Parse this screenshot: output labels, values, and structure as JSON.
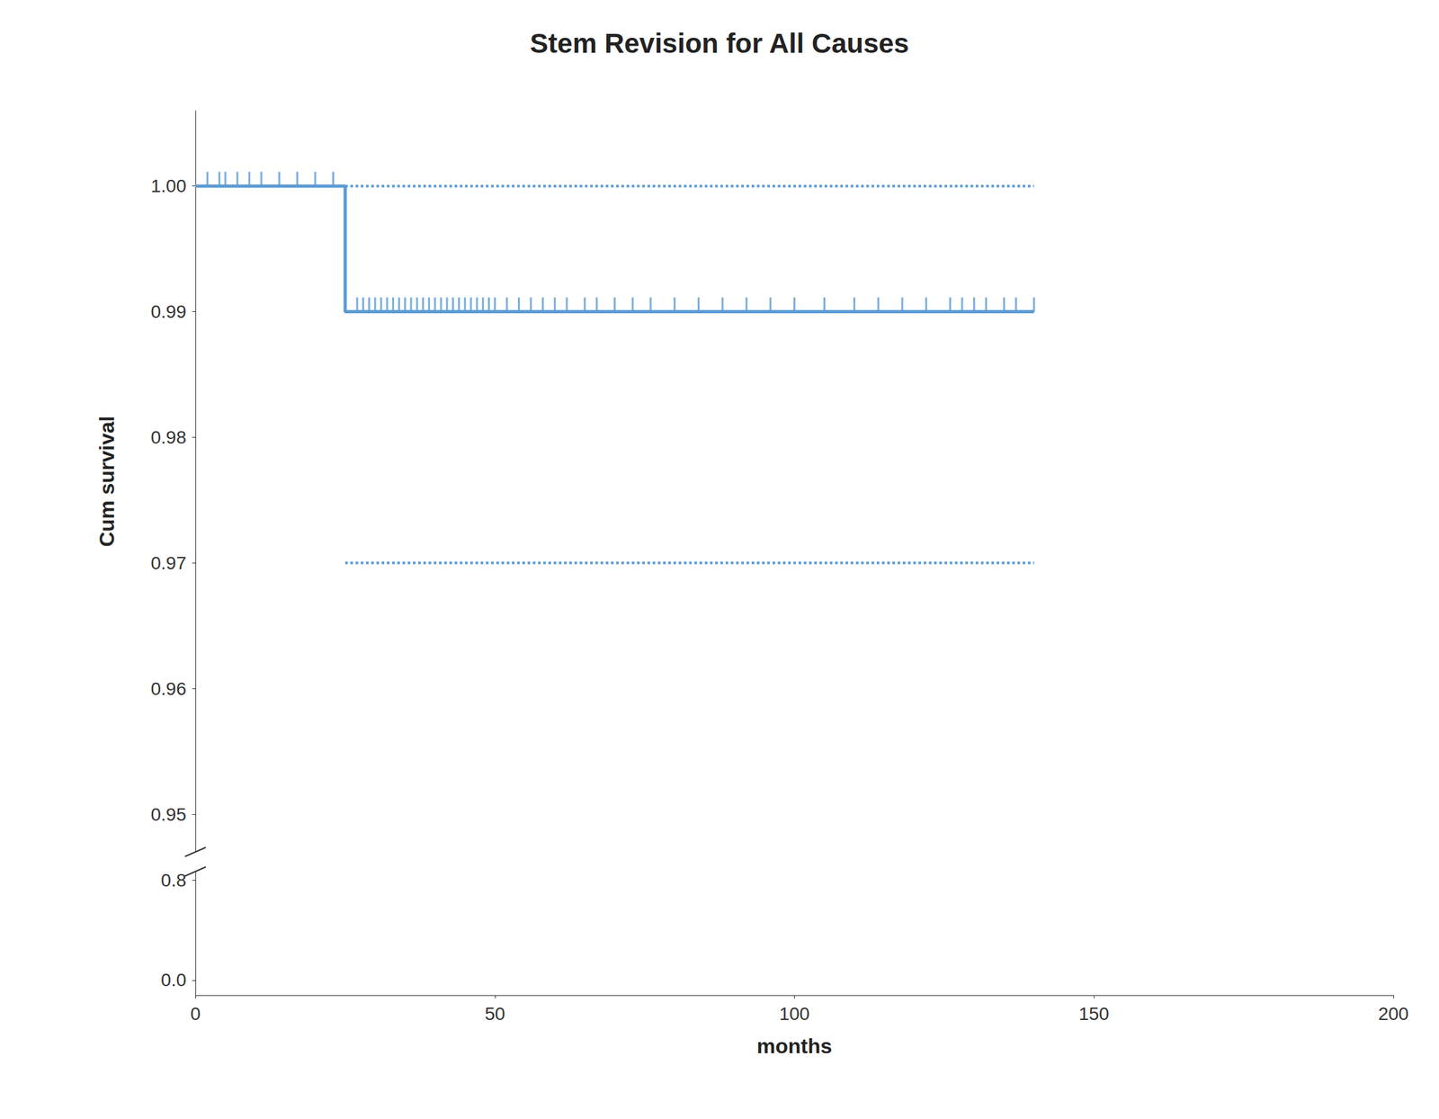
{
  "chart_data": [
    {
      "type": "line",
      "title": "Stem Revision for All Causes",
      "ylabel": "Cum survival",
      "color": "#5B9BD5",
      "xlim": [
        0,
        200
      ],
      "ylim": [
        0.947,
        1.006
      ],
      "yticks": [
        0.95,
        0.96,
        0.97,
        0.98,
        0.99,
        {
          "value": 1.0,
          "label": "1.00"
        }
      ],
      "tick_labels": "y",
      "grid": false,
      "series": [
        {
          "type": "line",
          "line_style": "solid",
          "x": [
            0,
            25,
            25,
            140
          ],
          "values": [
            1.0,
            1.0,
            0.99,
            0.99
          ]
        },
        {
          "type": "line",
          "line_style": "dotted",
          "x": [
            25,
            140
          ],
          "values": [
            1.0,
            1.0
          ]
        },
        {
          "type": "line",
          "line_style": "dotted",
          "x": [
            25,
            140
          ],
          "values": [
            0.97,
            0.97
          ]
        },
        {
          "type": "scatter",
          "marker": "|",
          "x": [
            2,
            4,
            5,
            7,
            9,
            11,
            14,
            17,
            20,
            23
          ],
          "values": [
            1.0,
            1.0,
            1.0,
            1.0,
            1.0,
            1.0,
            1.0,
            1.0,
            1.0,
            1.0
          ]
        },
        {
          "type": "scatter",
          "marker": "|",
          "x": [
            27,
            28,
            29,
            30,
            31,
            32,
            33,
            34,
            35,
            36,
            37,
            38,
            39,
            40,
            41,
            42,
            43,
            44,
            45,
            46,
            47,
            48,
            49,
            50,
            52,
            54,
            56,
            58,
            60,
            62,
            65,
            67,
            70,
            73,
            76,
            80,
            84,
            88,
            92,
            96,
            100,
            105,
            110,
            114,
            118,
            122,
            126,
            128,
            130,
            132,
            135,
            137,
            140
          ],
          "values": [
            0.99,
            0.99,
            0.99,
            0.99,
            0.99,
            0.99,
            0.99,
            0.99,
            0.99,
            0.99,
            0.99,
            0.99,
            0.99,
            0.99,
            0.99,
            0.99,
            0.99,
            0.99,
            0.99,
            0.99,
            0.99,
            0.99,
            0.99,
            0.99,
            0.99,
            0.99,
            0.99,
            0.99,
            0.99,
            0.99,
            0.99,
            0.99,
            0.99,
            0.99,
            0.99,
            0.99,
            0.99,
            0.99,
            0.99,
            0.99,
            0.99,
            0.99,
            0.99,
            0.99,
            0.99,
            0.99,
            0.99,
            0.99,
            0.99,
            0.99,
            0.99,
            0.99,
            0.99
          ]
        }
      ]
    },
    {
      "type": "line",
      "xlabel": "months",
      "xlim": [
        0,
        200
      ],
      "xticks": [
        0,
        50,
        100,
        150,
        200
      ],
      "ylim": [
        -0.12,
        0.87
      ],
      "yticks": [
        {
          "value": 0.0,
          "label": "0.0"
        },
        0.8
      ],
      "grid": false
    }
  ]
}
